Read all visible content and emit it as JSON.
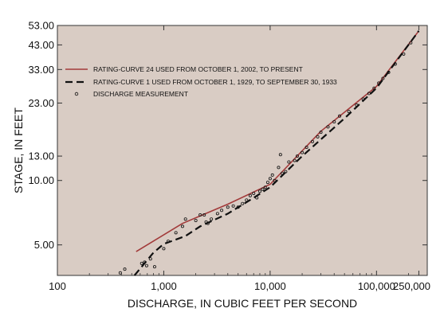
{
  "chart_data": {
    "type": "line",
    "xlabel": "DISCHARGE, IN CUBIC FEET PER SECOND",
    "ylabel": "STAGE, IN FEET",
    "x_scale": "log",
    "y_scale": "log",
    "xlim": [
      100,
      300000
    ],
    "ylim": [
      3.6,
      53
    ],
    "x_ticks": [
      100,
      1000,
      10000,
      100000,
      250000
    ],
    "x_tick_labels": [
      "100",
      "1,000",
      "10,000",
      "100,000",
      "250,000"
    ],
    "y_ticks": [
      5,
      10,
      13,
      23,
      33,
      43,
      53
    ],
    "y_tick_labels": [
      "5.00",
      "10.00",
      "13.00",
      "23.00",
      "33.00",
      "43.00",
      "53.00"
    ],
    "grid": false,
    "legend_position": "top-left",
    "colors": {
      "plot_background": "#d9ccc4",
      "rating_24": "#a23a3a",
      "rating_1": "#111111",
      "measurement": "#111111"
    },
    "series": [
      {
        "name": "RATING-CURVE 24  USED FROM OCTOBER 1, 2002, TO PRESENT",
        "style": "solid",
        "points": [
          [
            550,
            4.65
          ],
          [
            1500,
            6.3
          ],
          [
            4000,
            7.75
          ],
          [
            10000,
            9.6
          ],
          [
            30000,
            17.0
          ],
          [
            100000,
            27.5
          ],
          [
            250000,
            50.0
          ]
        ]
      },
      {
        "name": "RATING-CURVE  1 USED FROM OCTOBER 1, 1929, TO SEPTEMBER 30, 1933",
        "style": "dashed",
        "points": [
          [
            530,
            3.6
          ],
          [
            800,
            4.6
          ],
          [
            1000,
            5.05
          ],
          [
            1600,
            5.5
          ],
          [
            2200,
            6.1
          ],
          [
            4000,
            7.0
          ],
          [
            7000,
            8.3
          ],
          [
            10000,
            9.3
          ],
          [
            20000,
            13.0
          ],
          [
            50000,
            19.5
          ],
          [
            100000,
            27.0
          ],
          [
            250000,
            50.0
          ]
        ]
      },
      {
        "name": "DISCHARGE MEASUREMENT",
        "style": "markers",
        "points": [
          [
            390,
            3.7
          ],
          [
            430,
            3.85
          ],
          [
            620,
            4.1
          ],
          [
            660,
            4.15
          ],
          [
            690,
            4.0
          ],
          [
            750,
            4.3
          ],
          [
            820,
            3.95
          ],
          [
            1000,
            4.8
          ],
          [
            1100,
            5.2
          ],
          [
            1300,
            5.7
          ],
          [
            1500,
            6.1
          ],
          [
            1600,
            6.6
          ],
          [
            2000,
            6.5
          ],
          [
            2200,
            6.9
          ],
          [
            2400,
            6.9
          ],
          [
            2500,
            6.4
          ],
          [
            2600,
            6.3
          ],
          [
            2800,
            6.6
          ],
          [
            3200,
            7.0
          ],
          [
            3500,
            7.25
          ],
          [
            4000,
            7.5
          ],
          [
            4500,
            7.6
          ],
          [
            5000,
            7.5
          ],
          [
            5500,
            7.8
          ],
          [
            6000,
            8.1
          ],
          [
            6500,
            8.5
          ],
          [
            7000,
            8.7
          ],
          [
            7500,
            8.3
          ],
          [
            8000,
            8.9
          ],
          [
            8500,
            9.1
          ],
          [
            9000,
            9.3
          ],
          [
            9500,
            9.8
          ],
          [
            10000,
            10.2
          ],
          [
            10500,
            10.6
          ],
          [
            11000,
            10.0
          ],
          [
            12000,
            11.5
          ],
          [
            12500,
            13.2
          ],
          [
            13000,
            10.8
          ],
          [
            14000,
            11.0
          ],
          [
            15000,
            12.2
          ],
          [
            17000,
            12.4
          ],
          [
            18000,
            13.0
          ],
          [
            20000,
            13.5
          ],
          [
            22000,
            14.3
          ],
          [
            25000,
            15.2
          ],
          [
            28000,
            16.0
          ],
          [
            30000,
            16.8
          ],
          [
            35000,
            17.8
          ],
          [
            40000,
            18.8
          ],
          [
            45000,
            20.0
          ],
          [
            55000,
            21.0
          ],
          [
            65000,
            22.5
          ],
          [
            75000,
            24.0
          ],
          [
            85000,
            25.5
          ],
          [
            95000,
            27.0
          ],
          [
            105000,
            28.5
          ],
          [
            115000,
            30.0
          ],
          [
            130000,
            32.0
          ],
          [
            150000,
            35.0
          ],
          [
            180000,
            39.0
          ],
          [
            210000,
            44.0
          ]
        ]
      }
    ]
  }
}
